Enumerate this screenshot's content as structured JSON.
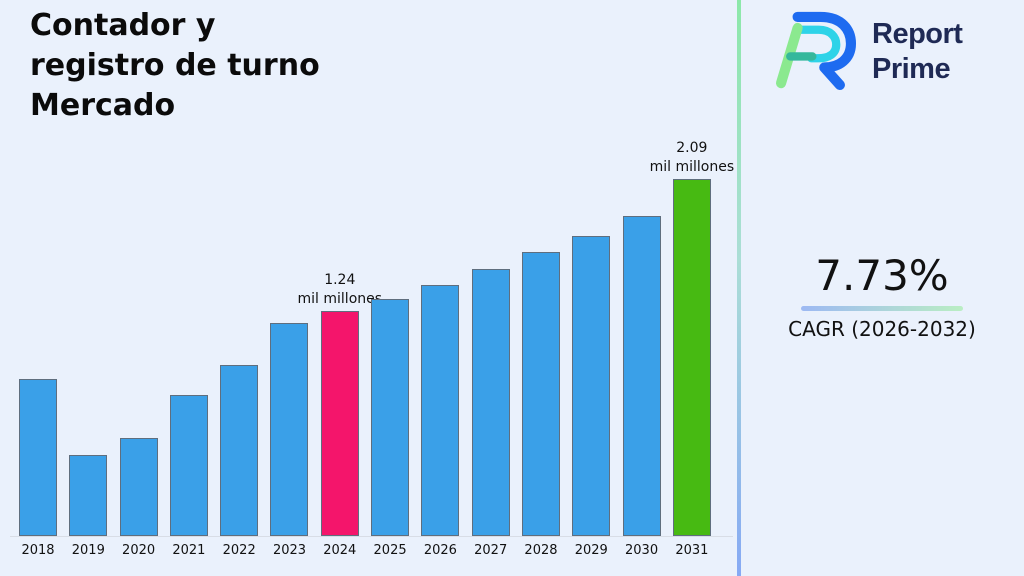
{
  "page": {
    "background": "#EAF1FC"
  },
  "header": {
    "title": "Contador y\nregistro de turno\nMercado"
  },
  "brand": {
    "logo_icon": "report-prime-logo",
    "name_line1": "Report",
    "name_line2": "Prime",
    "text_color": "#1F2A55"
  },
  "divider": {
    "gradient": [
      "#8CE8A9",
      "#ABDED6",
      "#86A9F4"
    ]
  },
  "stats": {
    "cagr_value": "7.73%",
    "cagr_label": "CAGR (2026-2032)",
    "underline_gradient": [
      "#9DB9F3",
      "#BAEEC3"
    ]
  },
  "chart_data": {
    "type": "bar",
    "title": "Contador y registro de turno Mercado",
    "categories": [
      "2018",
      "2019",
      "2020",
      "2021",
      "2022",
      "2023",
      "2024",
      "2025",
      "2026",
      "2027",
      "2028",
      "2029",
      "2030",
      "2031"
    ],
    "values": [
      0.8,
      0.31,
      0.42,
      0.7,
      0.89,
      1.16,
      1.24,
      1.32,
      1.41,
      1.51,
      1.62,
      1.72,
      1.85,
      2.09
    ],
    "unit": "mil millones",
    "xlabel": "",
    "ylabel": "",
    "ylim": [
      -0.209,
      2.34
    ],
    "grid": false,
    "legend": null,
    "annotations": [
      {
        "year": "2024",
        "lines": [
          "1.24",
          "mil millones"
        ]
      },
      {
        "year": "2031",
        "lines": [
          "2.09",
          "mil millones"
        ]
      }
    ],
    "colors": {
      "default": "#3AA0E8",
      "2024": "#F4156B",
      "2031": "#47BA12",
      "edge": "#5f6e7e",
      "axis_line": "#d8dde6"
    }
  }
}
